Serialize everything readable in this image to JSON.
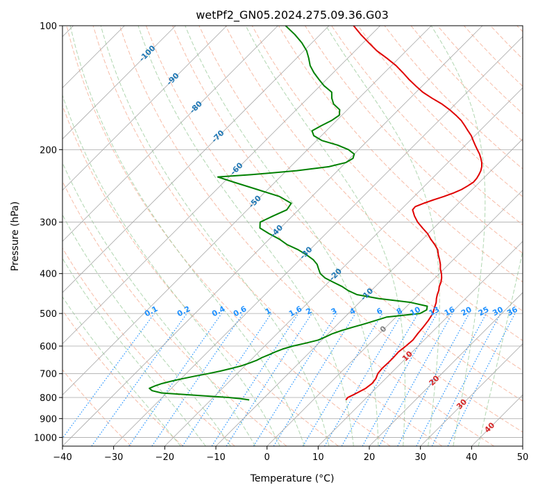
{
  "chart_data": {
    "type": "line",
    "title": "wetPf2_GN05.2024.275.09.36.G03",
    "xlabel": "Temperature (°C)",
    "ylabel": "Pressure (hPa)",
    "xlim": [
      -40,
      50
    ],
    "ylim": [
      1050,
      100
    ],
    "y_scale": "log",
    "x_ticks": [
      -40,
      -30,
      -20,
      -10,
      0,
      10,
      20,
      30,
      40,
      50
    ],
    "y_ticks": [
      100,
      200,
      300,
      400,
      500,
      600,
      700,
      800,
      900,
      1000
    ],
    "skew": 1.0,
    "grid": true,
    "colors": {
      "temperature": "#e00000",
      "dewpoint": "#008000",
      "isotherm": "#a8a8a8",
      "dry_adiabat": "#f4a58a",
      "moist_adiabat": "#9ccc9c",
      "mixing_ratio": "#1e90ff",
      "isotherm_label": "#1f77b4",
      "adiabat_label": "#d62728",
      "zero_label": "#808080"
    },
    "series": [
      {
        "role": "temperature",
        "pressure": [
          811,
          800,
          780,
          760,
          740,
          720,
          700,
          680,
          660,
          640,
          620,
          600,
          580,
          560,
          540,
          520,
          500,
          490,
          480,
          470,
          460,
          450,
          440,
          430,
          420,
          410,
          400,
          390,
          380,
          370,
          360,
          350,
          340,
          330,
          320,
          310,
          300,
          290,
          280,
          275,
          270,
          265,
          260,
          255,
          250,
          245,
          240,
          235,
          230,
          225,
          220,
          215,
          210,
          205,
          200,
          195,
          190,
          185,
          180,
          175,
          170,
          165,
          160,
          155,
          150,
          145,
          140,
          135,
          130,
          125,
          120,
          115,
          110,
          105,
          100
        ],
        "temperature": [
          6.4,
          6.3,
          7.2,
          8.0,
          8.3,
          8.1,
          7.5,
          7.3,
          7.4,
          7.4,
          7.3,
          7.6,
          7.8,
          7.5,
          7.3,
          7.0,
          6.5,
          6.0,
          5.5,
          5.0,
          4.3,
          3.7,
          3.2,
          2.5,
          2.0,
          1.3,
          0.4,
          -0.7,
          -1.6,
          -2.7,
          -3.9,
          -5.0,
          -6.6,
          -8.4,
          -10.1,
          -12.2,
          -14.3,
          -16.1,
          -17.7,
          -17.8,
          -16.8,
          -15.6,
          -14.2,
          -13.0,
          -12.1,
          -11.6,
          -11.2,
          -11.3,
          -11.6,
          -12.0,
          -12.6,
          -13.4,
          -14.4,
          -15.5,
          -16.8,
          -18.1,
          -19.4,
          -20.7,
          -22.3,
          -23.9,
          -25.6,
          -27.7,
          -30.0,
          -32.6,
          -35.7,
          -38.7,
          -41.3,
          -43.9,
          -46.4,
          -49.1,
          -52.3,
          -55.8,
          -58.9,
          -62.1,
          -65.2
        ]
      },
      {
        "role": "dewpoint",
        "pressure": [
          811,
          805,
          800,
          795,
          790,
          785,
          780,
          770,
          760,
          750,
          740,
          730,
          720,
          710,
          700,
          690,
          680,
          670,
          660,
          650,
          640,
          630,
          620,
          610,
          600,
          590,
          580,
          570,
          560,
          550,
          540,
          530,
          520,
          510,
          500,
          490,
          480,
          470,
          460,
          450,
          440,
          430,
          420,
          410,
          400,
          390,
          380,
          370,
          360,
          350,
          340,
          330,
          320,
          310,
          300,
          290,
          280,
          270,
          260,
          250,
          240,
          233,
          230,
          225,
          220,
          215,
          210,
          205,
          200,
          195,
          190,
          185,
          180,
          175,
          170,
          165,
          160,
          155,
          150,
          145,
          140,
          135,
          130,
          125,
          120,
          115,
          110,
          105,
          100
        ],
        "dewpoint": [
          -12.5,
          -14.5,
          -17.0,
          -20.5,
          -24.0,
          -27.5,
          -31.0,
          -33.3,
          -34.3,
          -33.7,
          -32.8,
          -31.4,
          -29.7,
          -27.8,
          -25.7,
          -23.8,
          -22.2,
          -20.7,
          -19.7,
          -18.8,
          -18.3,
          -17.5,
          -16.8,
          -15.9,
          -14.5,
          -12.5,
          -10.7,
          -9.9,
          -9.2,
          -8.0,
          -6.5,
          -4.8,
          -3.3,
          -1.8,
          4.0,
          4.6,
          4.0,
          0.0,
          -7.0,
          -12.0,
          -14.5,
          -16.5,
          -19.0,
          -21.5,
          -23.3,
          -24.5,
          -25.7,
          -27.4,
          -29.7,
          -32.3,
          -35.5,
          -38.0,
          -41.1,
          -44.0,
          -45.1,
          -43.8,
          -42.3,
          -42.7,
          -46.3,
          -52.0,
          -58.0,
          -62.2,
          -56.0,
          -48.0,
          -42.5,
          -40.0,
          -39.4,
          -40.0,
          -42.0,
          -45.0,
          -49.0,
          -51.5,
          -52.8,
          -52.0,
          -51.0,
          -50.5,
          -51.5,
          -53.8,
          -55.3,
          -56.5,
          -59.2,
          -61.5,
          -63.8,
          -65.9,
          -67.6,
          -69.5,
          -72.0,
          -75.0,
          -78.5
        ]
      }
    ],
    "isotherm_labels": [
      "-100",
      "-90",
      "-80",
      "-70",
      "-60",
      "-50",
      "-40",
      "-30",
      "-20",
      "-10",
      "0",
      "10",
      "20",
      "30",
      "40"
    ],
    "mixing_ratio_labels": [
      "0.1",
      "0.2",
      "0.4",
      "0.6",
      "1",
      "1.6",
      "2",
      "3",
      "4",
      "6",
      "8",
      "10",
      "13",
      "16",
      "20",
      "25",
      "30",
      "36"
    ]
  }
}
